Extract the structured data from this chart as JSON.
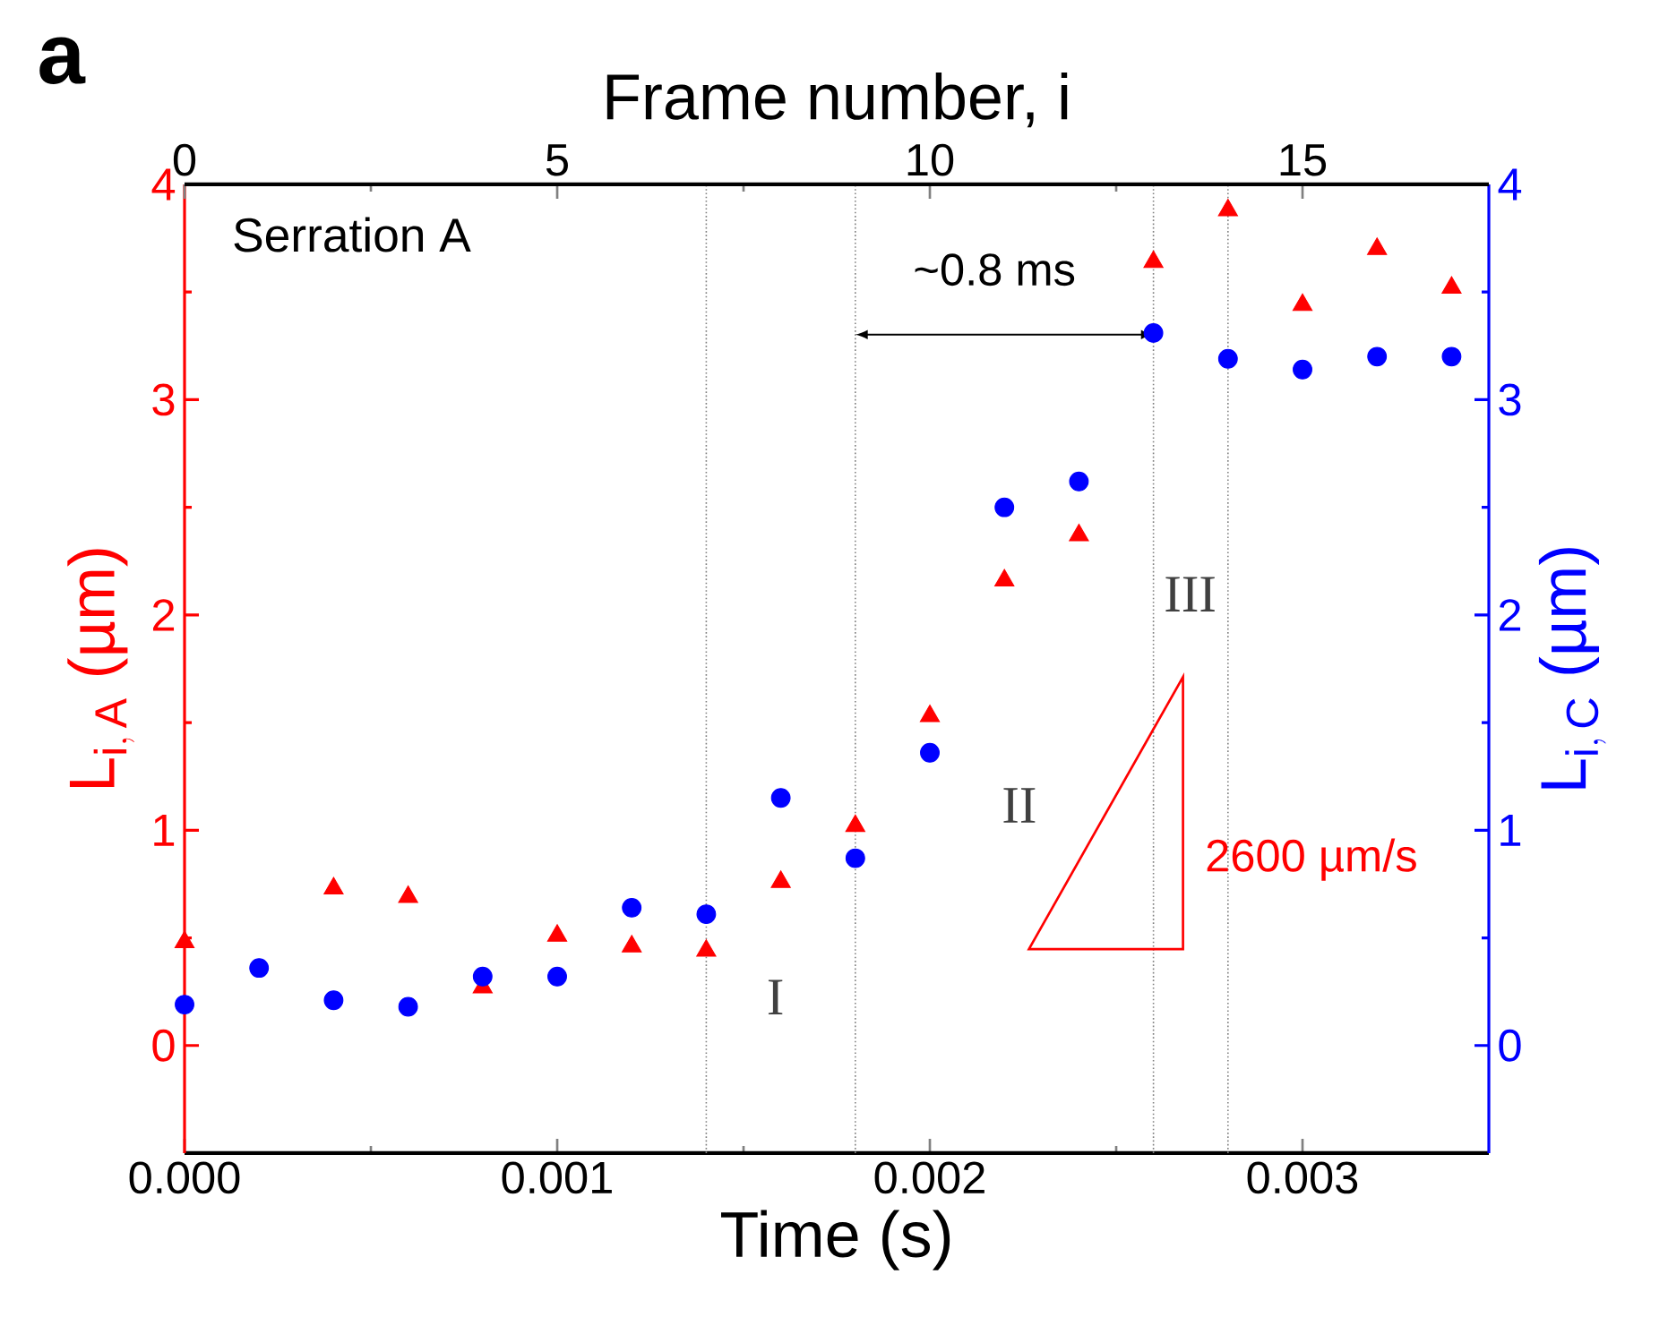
{
  "chart_data": {
    "type": "scatter",
    "xlabel": "Time (s)",
    "x2label": "Frame number, i",
    "ylabel": "\\mathrm{L}_{\\mathrm{i,\\,A}}\\ \\text{(µm)}",
    "y2label": "\\mathrm{L}_{\\mathrm{i,\\,C}}\\ \\text{(µm)}",
    "x": [
      0,
      0.0002,
      0.0004,
      0.0006,
      0.0008,
      0.001,
      0.0012,
      0.0014,
      0.0016,
      0.0018,
      0.002,
      0.0022,
      0.0024,
      0.0026,
      0.0028,
      0.003,
      0.0032,
      0.0034
    ],
    "series": [
      {
        "color": "#ff0000",
        "marker": "triangle",
        "values": [
          0.48,
          null,
          0.73,
          0.69,
          0.27,
          0.51,
          0.46,
          0.44,
          0.76,
          1.02,
          1.53,
          2.16,
          2.37,
          3.64,
          3.88,
          3.44,
          3.7,
          3.52
        ]
      },
      {
        "color": "#0000ff",
        "marker": "circle",
        "axis": "y2",
        "values": [
          0.19,
          0.36,
          0.21,
          0.18,
          0.32,
          0.32,
          0.64,
          0.61,
          1.15,
          0.87,
          1.36,
          2.5,
          2.62,
          3.31,
          3.19,
          3.14,
          3.2,
          3.2
        ]
      }
    ],
    "xlim": [
      0,
      0.0035
    ],
    "xticks": [
      {
        "value": 0,
        "label": "0.000"
      },
      {
        "value": 0.001,
        "label": "0.001"
      },
      {
        "value": 0.002,
        "label": "0.002"
      },
      {
        "value": 0.003,
        "label": "0.003"
      }
    ],
    "x2lim": [
      0,
      17.5
    ],
    "x2ticks": [
      0,
      5,
      10,
      15
    ],
    "ylim": [
      -0.5,
      4
    ],
    "yticks": [
      0,
      1,
      2,
      3,
      4
    ],
    "y2lim": [
      -0.5,
      4
    ],
    "y2ticks": [
      0,
      1,
      2,
      3,
      4
    ],
    "ref_lines": [
      {
        "axis": "x",
        "value": 0.0014,
        "color": "#808080",
        "line_style": "dotted"
      },
      {
        "axis": "x",
        "value": 0.0018,
        "color": "#808080",
        "line_style": "dotted"
      },
      {
        "axis": "x",
        "value": 0.0026,
        "color": "#808080",
        "line_style": "dotted"
      },
      {
        "axis": "x",
        "value": 0.0028,
        "color": "#808080",
        "line_style": "dotted"
      }
    ],
    "annotations": [
      "a",
      "Serration A",
      "~0.8 ms",
      "I",
      "II",
      "III",
      "2600 µm/s"
    ]
  }
}
